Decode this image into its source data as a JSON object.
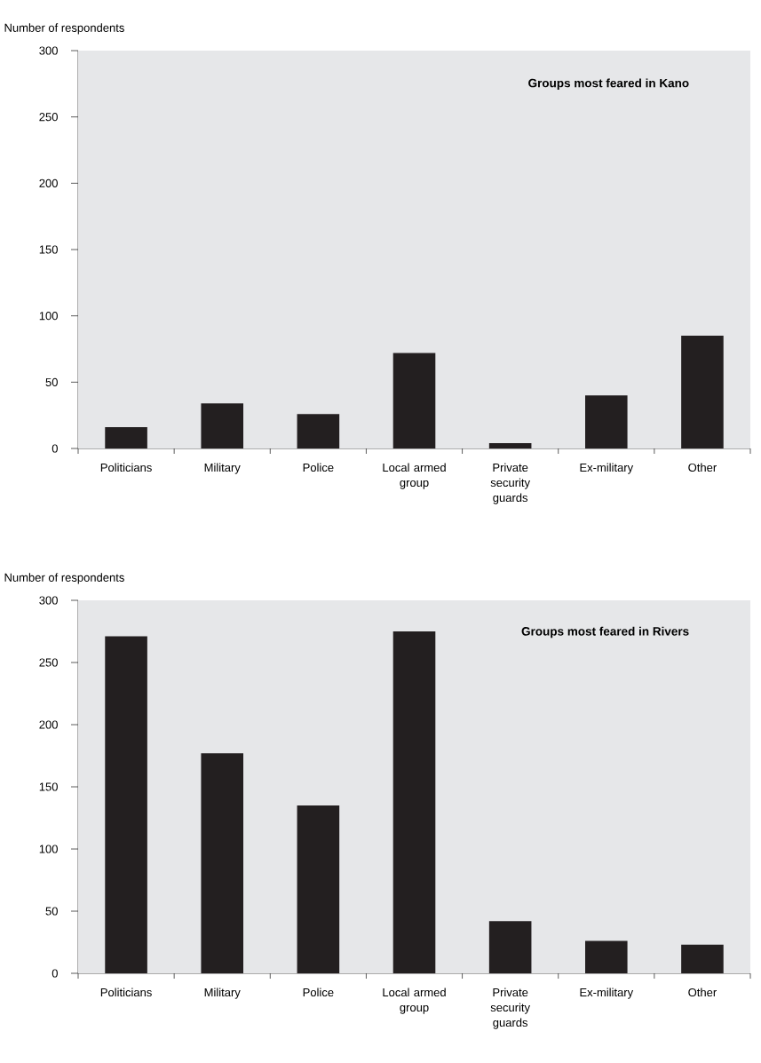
{
  "chart_data": [
    {
      "type": "bar",
      "title": "Groups most feared in Kano",
      "ylabel": "Number of respondents",
      "categories": [
        "Politicians",
        "Military",
        "Police",
        "Local armed group",
        "Private security guards",
        "Ex-military",
        "Other"
      ],
      "values": [
        16,
        34,
        26,
        72,
        4,
        40,
        85
      ],
      "color": "#231f20",
      "ylim": [
        0,
        300
      ],
      "yticks": [
        0,
        50,
        100,
        150,
        200,
        250,
        300
      ]
    },
    {
      "type": "bar",
      "title": "Groups most feared in Rivers",
      "ylabel": "Number of respondents",
      "categories": [
        "Politicians",
        "Military",
        "Police",
        "Local armed group",
        "Private security guards",
        "Ex-military",
        "Other"
      ],
      "values": [
        271,
        177,
        135,
        275,
        42,
        26,
        23
      ],
      "color": "#231f20",
      "ylim": [
        0,
        300
      ],
      "yticks": [
        0,
        50,
        100,
        150,
        200,
        250,
        300
      ]
    }
  ]
}
